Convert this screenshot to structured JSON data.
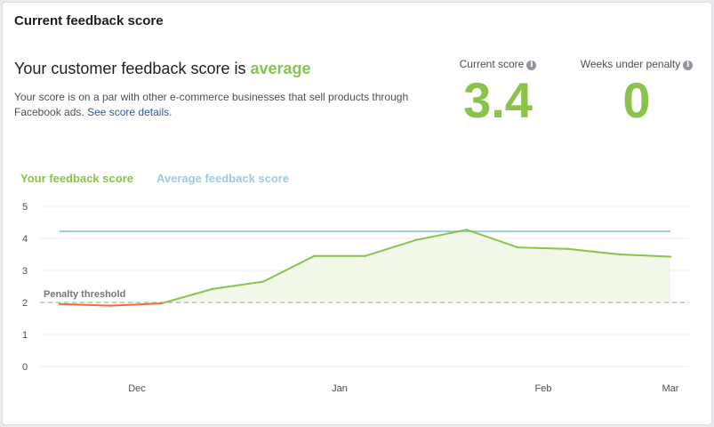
{
  "card": {
    "title": "Current feedback score",
    "headline_prefix": "Your customer feedback score is ",
    "headline_grade": "average",
    "description": "Your score is on a par with other e-commerce businesses that sell products through Facebook ads. ",
    "details_link": "See score details."
  },
  "stats": {
    "current_score_label": "Current score",
    "current_score_value": "3.4",
    "weeks_label": "Weeks under penalty",
    "weeks_value": "0",
    "info_icon": "i"
  },
  "colors": {
    "your_score": "#8bc34a",
    "penalty_segment": "#f26b3a",
    "average": "#9ccbdb",
    "threshold": "#bbbbbb",
    "area_fill": "#f1f8e9"
  },
  "chart_data": {
    "type": "line",
    "title": "",
    "legend": [
      "Your feedback score",
      "Average feedback score"
    ],
    "y_ticks": [
      0,
      1,
      2,
      3,
      4,
      5
    ],
    "ylim": [
      0,
      5
    ],
    "x_ticks": [
      "Dec",
      "Jan",
      "Feb",
      "Mar"
    ],
    "threshold": {
      "label": "Penalty threshold",
      "value": 2
    },
    "average_score": 4.22,
    "series": [
      {
        "name": "Your feedback score",
        "points": [
          {
            "x": "Nov 24",
            "y": 1.95
          },
          {
            "x": "Dec 1",
            "y": 1.9
          },
          {
            "x": "Dec 8",
            "y": 1.97
          },
          {
            "x": "Dec 15",
            "y": 2.42
          },
          {
            "x": "Dec 22",
            "y": 2.65
          },
          {
            "x": "Dec 29",
            "y": 3.45
          },
          {
            "x": "Jan 5",
            "y": 3.45
          },
          {
            "x": "Jan 12",
            "y": 3.95
          },
          {
            "x": "Jan 19",
            "y": 4.27
          },
          {
            "x": "Jan 26",
            "y": 3.72
          },
          {
            "x": "Feb 2",
            "y": 3.67
          },
          {
            "x": "Feb 9",
            "y": 3.5
          },
          {
            "x": "Feb 16",
            "y": 3.43
          }
        ]
      }
    ]
  }
}
